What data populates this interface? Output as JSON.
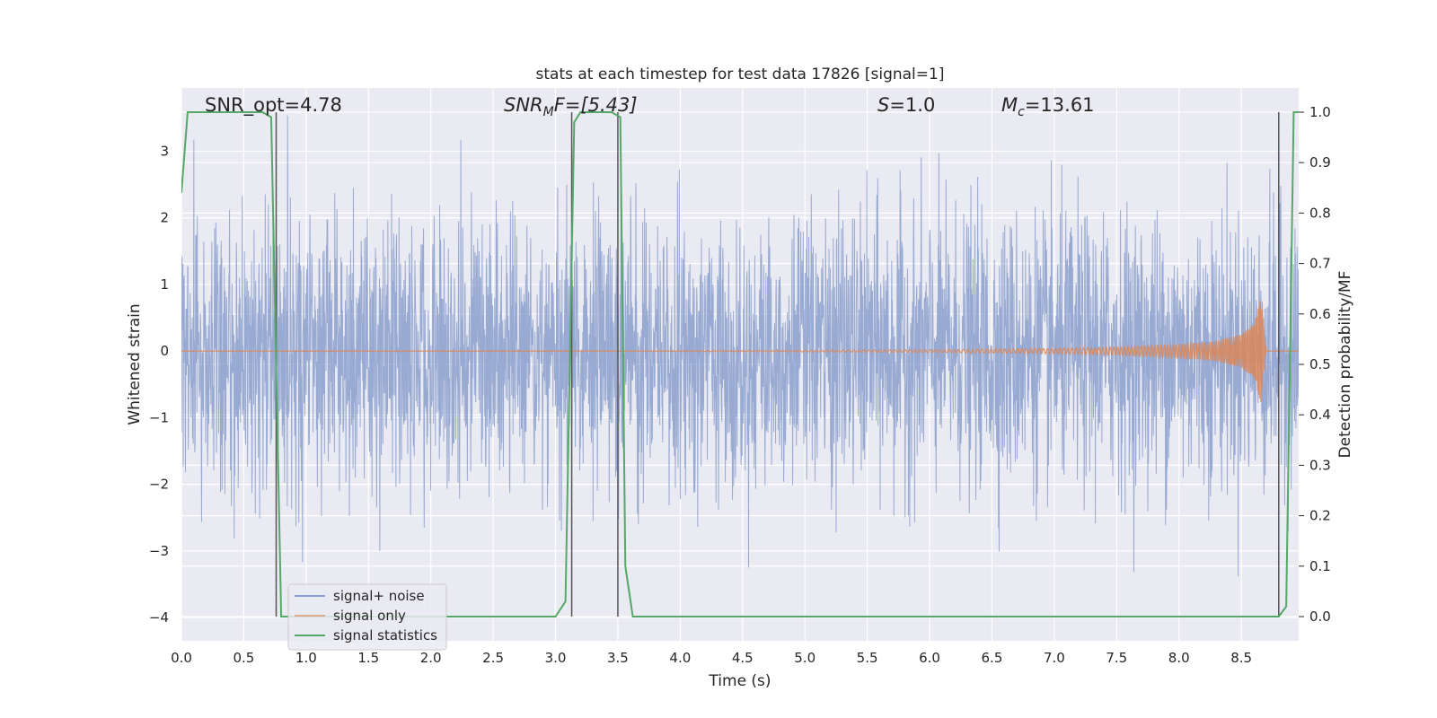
{
  "chart_data": {
    "type": "line",
    "title": "stats at each timestep for test data 17826 [signal=1]",
    "xlabel": "Time (s)",
    "ylabel": "Whitened strain",
    "y2label": "Detection probability/MF",
    "xlim": [
      0.0,
      8.96
    ],
    "ylim": [
      -4.35,
      3.95
    ],
    "y2lim": [
      -0.048,
      1.048
    ],
    "xticks": [
      "0.0",
      "0.5",
      "1.0",
      "1.5",
      "2.0",
      "2.5",
      "3.0",
      "3.5",
      "4.0",
      "4.5",
      "5.0",
      "5.5",
      "6.0",
      "6.5",
      "7.0",
      "7.5",
      "8.0",
      "8.5"
    ],
    "xtick_values": [
      0.0,
      0.5,
      1.0,
      1.5,
      2.0,
      2.5,
      3.0,
      3.5,
      4.0,
      4.5,
      5.0,
      5.5,
      6.0,
      6.5,
      7.0,
      7.5,
      8.0,
      8.5
    ],
    "yticks": [
      "3",
      "2",
      "1",
      "0",
      "−1",
      "−2",
      "−3",
      "−4"
    ],
    "ytick_values": [
      3,
      2,
      1,
      0,
      -1,
      -2,
      -3,
      -4
    ],
    "y2ticks": [
      "1.0",
      "0.9",
      "0.8",
      "0.7",
      "0.6",
      "0.5",
      "0.4",
      "0.3",
      "0.2",
      "0.1",
      "0.0"
    ],
    "y2tick_values": [
      1.0,
      0.9,
      0.8,
      0.7,
      0.6,
      0.5,
      0.4,
      0.3,
      0.2,
      0.1,
      0.0
    ],
    "grid": true,
    "legend": {
      "placement": "lower-left",
      "entries": [
        "signal+ noise",
        "signal only",
        "signal statistics"
      ]
    },
    "annotations": {
      "snr_opt": "SNR_opt=4.78",
      "snr_mf_main": "SNR",
      "snr_mf_sub": "M",
      "snr_mf_rest": "F=[5.43]",
      "s_var": "S",
      "s_rest": "=1.0",
      "mc_main": "M",
      "mc_sub": "c",
      "mc_rest": "=13.61"
    },
    "series": [
      {
        "name": "signal+ noise",
        "color": "#8a9fcc",
        "std": 1.0,
        "xrange": [
          0.0,
          8.96
        ]
      },
      {
        "name": "signal only",
        "color": "#dd8452",
        "x": [
          0.0,
          3.0,
          5.0,
          6.0,
          7.0,
          7.5,
          8.0,
          8.3,
          8.5,
          8.6,
          8.66,
          8.7,
          8.96
        ],
        "amplitude": [
          0.0,
          0.0,
          0.01,
          0.02,
          0.04,
          0.06,
          0.1,
          0.15,
          0.25,
          0.4,
          0.8,
          0.0,
          0.0
        ]
      },
      {
        "name": "signal statistics",
        "color": "#55a868",
        "axis": "right",
        "x": [
          0.0,
          0.05,
          0.1,
          0.65,
          0.72,
          0.8,
          3.0,
          3.08,
          3.15,
          3.2,
          3.45,
          3.52,
          3.56,
          3.62,
          8.8,
          8.86,
          8.92,
          8.96
        ],
        "y": [
          0.84,
          1.0,
          1.0,
          1.0,
          0.99,
          0.0,
          0.0,
          0.03,
          0.98,
          1.0,
          1.0,
          0.99,
          0.1,
          0.0,
          0.0,
          0.02,
          1.0,
          1.0
        ]
      }
    ],
    "vertical_lines": [
      0.76,
      3.13,
      3.5,
      8.8
    ],
    "vertical_lines_color": "#555555",
    "background_color": "#eaeaf2"
  }
}
